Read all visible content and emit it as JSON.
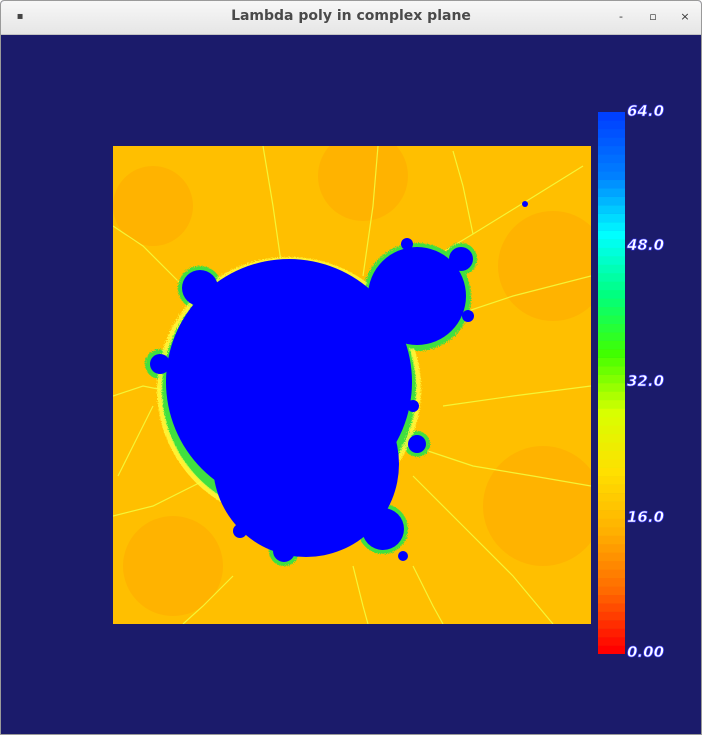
{
  "window": {
    "title": "Lambda poly in complex plane",
    "menu_icon": "window-menu-icon",
    "minimize_icon": "minimize-icon",
    "maximize_icon": "maximize-icon",
    "close_icon": "close-icon"
  },
  "colors": {
    "background": "#1b1b6b",
    "set_interior": "#0000ff",
    "exterior": "#ffbf00"
  },
  "colorbar": {
    "labels": [
      "64.0",
      "48.0",
      "32.0",
      "16.0",
      "0.00"
    ],
    "min": 0,
    "max": 64,
    "stops": [
      "#ff0000",
      "#ff6a00",
      "#ffb000",
      "#ffe000",
      "#d8ff00",
      "#40ff00",
      "#00ff80",
      "#00ffff",
      "#0080ff",
      "#0040ff"
    ]
  }
}
